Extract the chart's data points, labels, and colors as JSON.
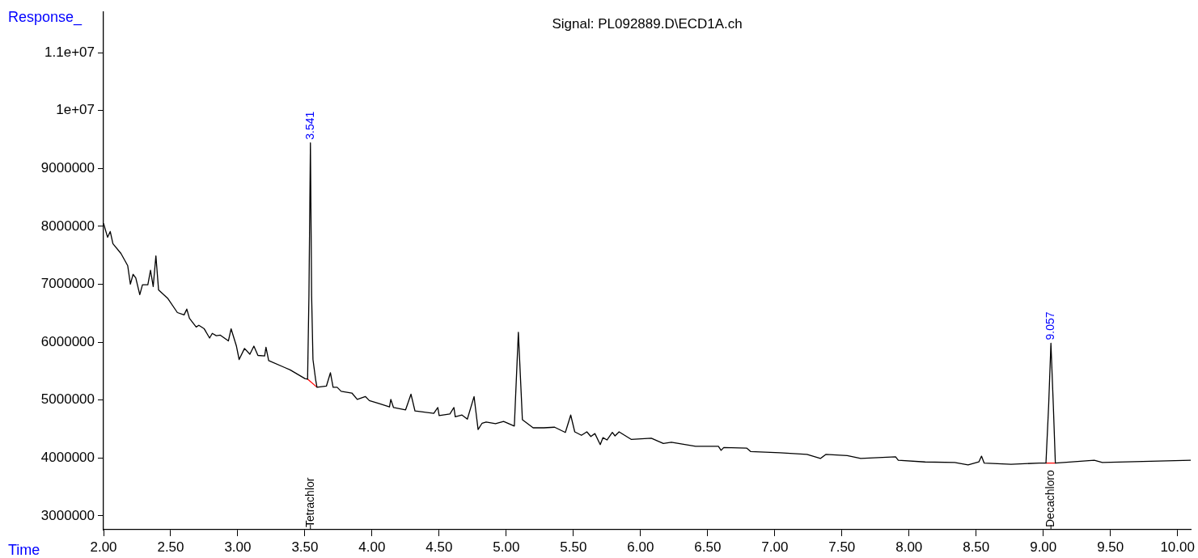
{
  "chart_data": {
    "type": "line",
    "title": "Signal: PL092889.D\\ECD1A.ch",
    "xlabel": "Time",
    "ylabel": "Response_",
    "xlim": [
      2.0,
      10.1
    ],
    "ylim": [
      2760000,
      11710000
    ],
    "xticks": [
      {
        "value": 2,
        "label": "2.00"
      },
      {
        "value": 2.5,
        "label": "2.50"
      },
      {
        "value": 3,
        "label": "3.00"
      },
      {
        "value": 3.5,
        "label": "3.50"
      },
      {
        "value": 4,
        "label": "4.00"
      },
      {
        "value": 4.5,
        "label": "4.50"
      },
      {
        "value": 5,
        "label": "5.00"
      },
      {
        "value": 5.5,
        "label": "5.50"
      },
      {
        "value": 6,
        "label": "6.00"
      },
      {
        "value": 6.5,
        "label": "6.50"
      },
      {
        "value": 7,
        "label": "7.00"
      },
      {
        "value": 7.5,
        "label": "7.50"
      },
      {
        "value": 8,
        "label": "8.00"
      },
      {
        "value": 8.5,
        "label": "8.50"
      },
      {
        "value": 9,
        "label": "9.00"
      },
      {
        "value": 9.5,
        "label": "9.50"
      },
      {
        "value": 10,
        "label": "10.00"
      }
    ],
    "yticks": [
      3000000,
      4000000,
      5000000,
      6000000,
      7000000,
      8000000,
      9000000,
      {
        "value": 10000000,
        "label": "1e+07"
      },
      {
        "value": 11000000,
        "label": "1.1e+07"
      }
    ],
    "grid": false,
    "legend": false,
    "marker": "none",
    "line_style": "solid",
    "series": [
      {
        "color": "#000000",
        "x": [
          2.0,
          2.03,
          2.05,
          2.07,
          2.13,
          2.18,
          2.2,
          2.22,
          2.24,
          2.27,
          2.29,
          2.33,
          2.35,
          2.37,
          2.39,
          2.41,
          2.48,
          2.55,
          2.6,
          2.62,
          2.64,
          2.69,
          2.71,
          2.75,
          2.79,
          2.81,
          2.84,
          2.87,
          2.93,
          2.95,
          2.99,
          3.01,
          3.05,
          3.09,
          3.12,
          3.15,
          3.2,
          3.21,
          3.23,
          3.35,
          3.39,
          3.5,
          3.52,
          3.53,
          3.541,
          3.55,
          3.56,
          3.58,
          3.59,
          3.66,
          3.69,
          3.71,
          3.74,
          3.77,
          3.85,
          3.89,
          3.95,
          3.98,
          4.05,
          4.13,
          4.14,
          4.16,
          4.25,
          4.29,
          4.32,
          4.46,
          4.49,
          4.5,
          4.58,
          4.61,
          4.62,
          4.67,
          4.71,
          4.76,
          4.79,
          4.82,
          4.85,
          4.92,
          4.98,
          5.06,
          5.09,
          5.12,
          5.2,
          5.28,
          5.36,
          5.44,
          5.48,
          5.51,
          5.56,
          5.6,
          5.63,
          5.66,
          5.7,
          5.72,
          5.75,
          5.79,
          5.81,
          5.84,
          5.93,
          6.08,
          6.17,
          6.23,
          6.41,
          6.58,
          6.6,
          6.62,
          6.79,
          6.82,
          7.04,
          7.24,
          7.34,
          7.38,
          7.54,
          7.64,
          7.9,
          7.92,
          8.12,
          8.34,
          8.44,
          8.52,
          8.54,
          8.56,
          8.76,
          8.97,
          9.02,
          9.04,
          9.057,
          9.075,
          9.09,
          9.38,
          9.44,
          10.1
        ],
        "values": [
          8050000,
          7810000,
          7910000,
          7700000,
          7530000,
          7320000,
          7000000,
          7170000,
          7110000,
          6820000,
          6990000,
          6990000,
          7240000,
          6960000,
          7490000,
          6900000,
          6750000,
          6510000,
          6470000,
          6570000,
          6410000,
          6260000,
          6290000,
          6230000,
          6070000,
          6150000,
          6110000,
          6120000,
          6020000,
          6230000,
          5930000,
          5700000,
          5890000,
          5790000,
          5930000,
          5770000,
          5760000,
          5910000,
          5680000,
          5560000,
          5520000,
          5370000,
          5360000,
          6800000,
          9440000,
          6800000,
          5700000,
          5350000,
          5220000,
          5240000,
          5470000,
          5220000,
          5220000,
          5150000,
          5120000,
          5010000,
          5060000,
          4990000,
          4940000,
          4880000,
          5010000,
          4870000,
          4830000,
          5100000,
          4810000,
          4770000,
          4870000,
          4730000,
          4760000,
          4870000,
          4710000,
          4740000,
          4670000,
          5060000,
          4490000,
          4600000,
          4620000,
          4590000,
          4630000,
          4550000,
          6170000,
          4660000,
          4520000,
          4520000,
          4530000,
          4440000,
          4740000,
          4450000,
          4390000,
          4450000,
          4370000,
          4420000,
          4230000,
          4350000,
          4310000,
          4440000,
          4380000,
          4450000,
          4320000,
          4340000,
          4250000,
          4270000,
          4200000,
          4200000,
          4130000,
          4180000,
          4170000,
          4110000,
          4090000,
          4060000,
          3990000,
          4060000,
          4040000,
          3990000,
          4020000,
          3960000,
          3930000,
          3920000,
          3880000,
          3930000,
          4030000,
          3910000,
          3890000,
          3910000,
          3910000,
          4900000,
          5980000,
          4900000,
          3910000,
          3960000,
          3920000,
          3960000
        ]
      },
      {
        "color": "#ff0000",
        "x": [
          3.52,
          3.59
        ],
        "values": [
          5360000,
          5220000
        ]
      },
      {
        "color": "#ff0000",
        "x": [
          9.02,
          9.09
        ],
        "values": [
          3910000,
          3910000
        ]
      }
    ],
    "annotations": [
      {
        "text": "3.541",
        "x": 3.541,
        "y": 9440000
      },
      {
        "text": "9.057",
        "x": 9.057,
        "y": 5980000
      }
    ],
    "ref_lines": [
      {
        "axis": "x",
        "value": 3.541,
        "label": "Tetrachlor"
      },
      {
        "axis": "x",
        "value": 9.057,
        "label": "Decachloro"
      }
    ]
  }
}
